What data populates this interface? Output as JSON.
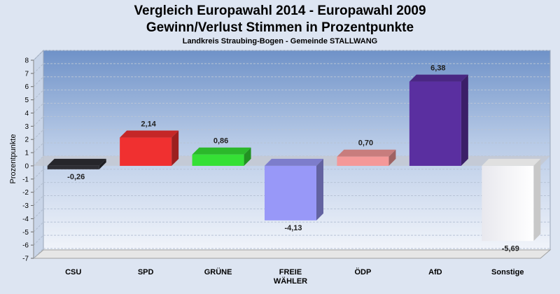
{
  "chart_data": {
    "type": "bar",
    "title_lines": [
      "Vergleich Europawahl 2014 - Europawahl 2009",
      "Gewinn/Verlust Stimmen in Prozentpunkte"
    ],
    "subtitle": "Landkreis Straubing-Bogen - Gemeinde STALLWANG",
    "ylabel": "Prozentpunkte",
    "xlabel": "",
    "ylim": [
      -7,
      8
    ],
    "yticks": [
      8,
      7,
      6,
      5,
      4,
      3,
      2,
      1,
      0,
      -1,
      -2,
      -3,
      -4,
      -5,
      -6,
      -7
    ],
    "categories": [
      "CSU",
      "SPD",
      "GRÜNE",
      "FREIE WÄHLER",
      "ÖDP",
      "AfD",
      "Sonstige"
    ],
    "category_lines": [
      [
        "CSU"
      ],
      [
        "SPD"
      ],
      [
        "GRÜNE"
      ],
      [
        "FREIE",
        "WÄHLER"
      ],
      [
        "ÖDP"
      ],
      [
        "AfD"
      ],
      [
        "Sonstige"
      ]
    ],
    "values": [
      -0.26,
      2.14,
      0.86,
      -4.13,
      0.7,
      6.38,
      -5.69
    ],
    "value_labels": [
      "-0,26",
      "2,14",
      "0,86",
      "-4,13",
      "0,70",
      "6,38",
      "-5,69"
    ],
    "colors": [
      "#2e2e34",
      "#f03030",
      "#35e035",
      "#9898f8",
      "#f49898",
      "#5a2fa0",
      "#fafafa"
    ],
    "grid": true,
    "legend": "none"
  }
}
